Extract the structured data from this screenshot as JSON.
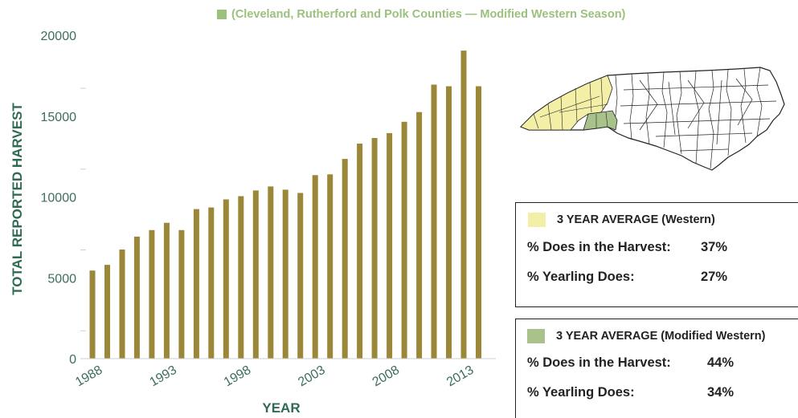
{
  "legend": {
    "label": "(Cleveland, Rutherford and Polk Counties — Modified Western Season)",
    "color": "#9cc07e"
  },
  "colors": {
    "bar": "#9a8738",
    "axis_text": "#3c6e5a",
    "label_text": "#2f6b53",
    "western_fill": "#f3efa6",
    "modified_fill": "#a9c28c"
  },
  "chart_data": {
    "type": "bar",
    "x": [
      1988,
      1989,
      1990,
      1991,
      1992,
      1993,
      1994,
      1995,
      1996,
      1997,
      1998,
      1999,
      2000,
      2001,
      2002,
      2003,
      2004,
      2005,
      2006,
      2007,
      2008,
      2009,
      2010,
      2011,
      2012,
      2013,
      2014
    ],
    "values": [
      5450,
      5800,
      6750,
      7550,
      7950,
      8400,
      7950,
      9250,
      9350,
      9850,
      10050,
      10400,
      10650,
      10450,
      10250,
      11350,
      11400,
      12350,
      13300,
      13650,
      13950,
      14650,
      15250,
      16950,
      16850,
      19050,
      16850
    ],
    "xticks": [
      "1988",
      "1993",
      "1998",
      "2003",
      "2008",
      "2013"
    ],
    "yticks": [
      0,
      5000,
      10000,
      15000,
      20000
    ],
    "ylim": [
      0,
      20000
    ],
    "xlabel": "YEAR",
    "ylabel": "TOTAL REPORTED HARVEST",
    "grid": false
  },
  "box1": {
    "title": "3 YEAR AVERAGE (Western)",
    "rows": [
      {
        "label": "% Does in the Harvest:",
        "value": "37%"
      },
      {
        "label": "% Yearling Does:",
        "value": "27%"
      }
    ]
  },
  "box2": {
    "title": "3 YEAR AVERAGE (Modified Western)",
    "rows": [
      {
        "label": "% Does in the Harvest:",
        "value": "44%"
      },
      {
        "label": "% Yearling Does:",
        "value": "34%"
      }
    ]
  }
}
